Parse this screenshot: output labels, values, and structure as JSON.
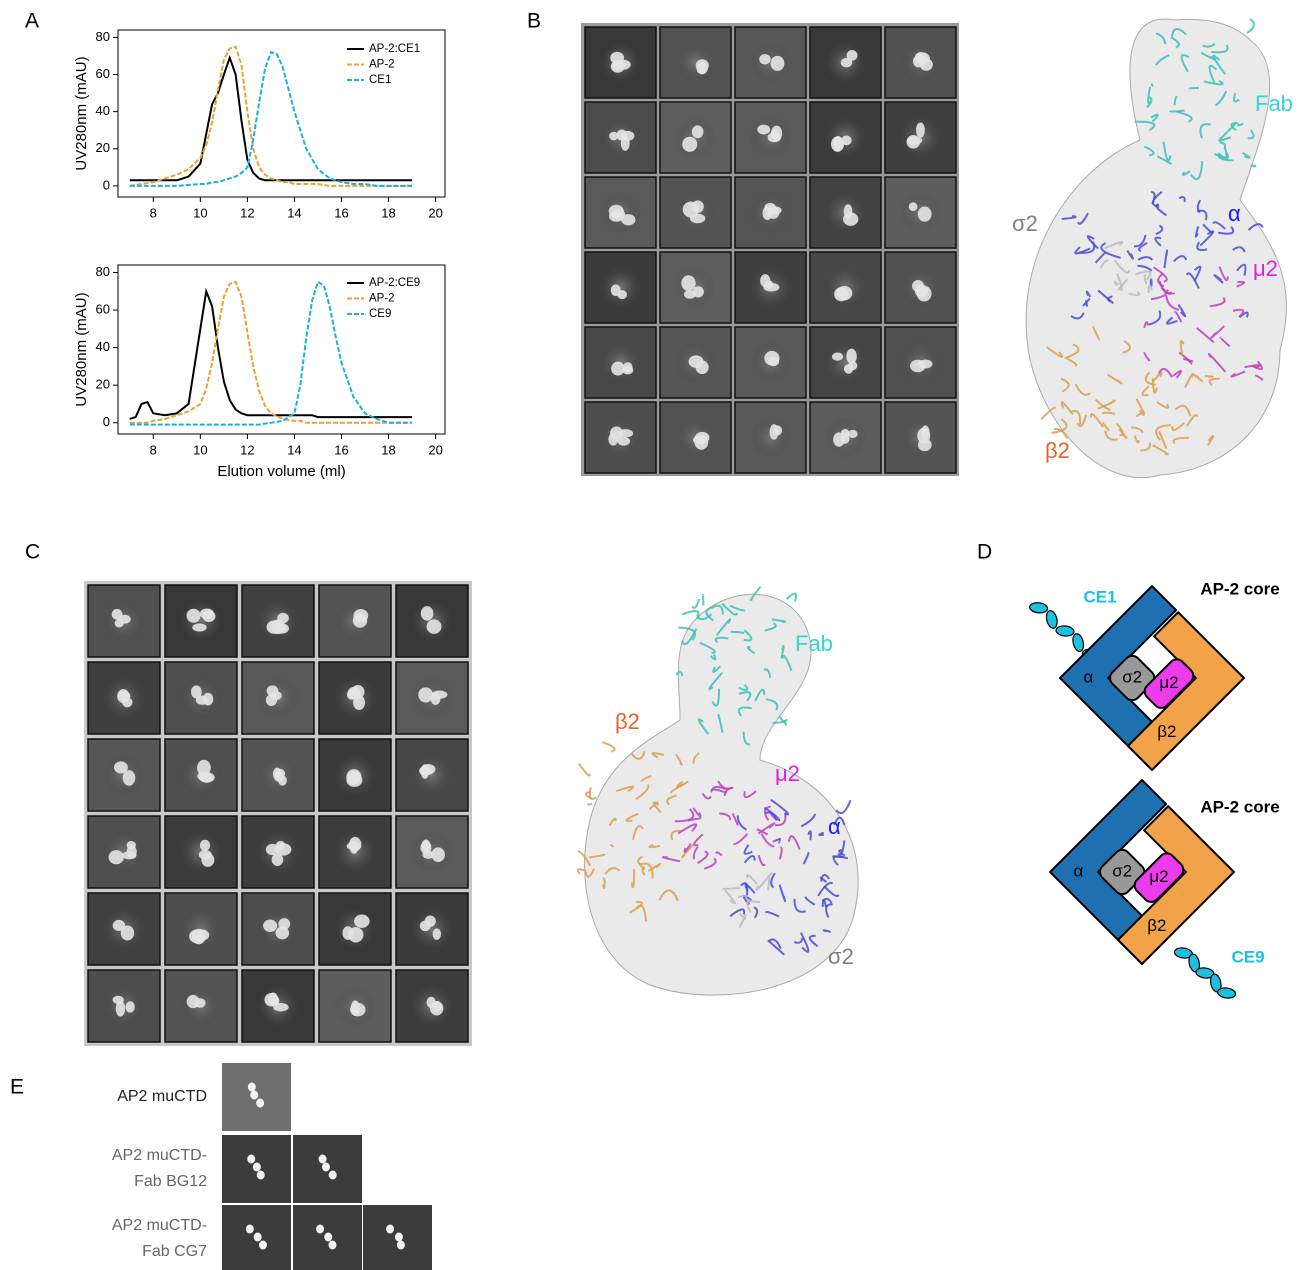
{
  "panel_labels": [
    "A",
    "B",
    "C",
    "D",
    "E"
  ],
  "chart_data": [
    {
      "type": "line",
      "ylabel": "UV280nm (mAU)",
      "x": [
        7,
        7.5,
        8,
        8.5,
        9,
        9.5,
        10,
        10.25,
        10.5,
        10.75,
        11,
        11.25,
        11.5,
        11.75,
        12,
        12.25,
        12.5,
        12.75,
        13,
        13.25,
        13.5,
        13.75,
        14,
        14.5,
        15,
        15.5,
        16,
        16.5,
        17,
        17.5,
        18,
        18.5,
        19
      ],
      "series": [
        {
          "name": "AP-2:CE1",
          "color": "#000000",
          "linestyle": "solid",
          "values": [
            3,
            3,
            3,
            3,
            3,
            5,
            12,
            28,
            44,
            50,
            60,
            69,
            60,
            35,
            14,
            7,
            4,
            3,
            3,
            3,
            3,
            3,
            3,
            3,
            3,
            3,
            3,
            3,
            3,
            3,
            3,
            3,
            3
          ]
        },
        {
          "name": "AP-2",
          "color": "#f0a030",
          "linestyle": "dashed",
          "values": [
            0,
            1,
            2,
            4,
            6,
            9,
            15,
            22,
            34,
            52,
            68,
            74,
            75,
            65,
            40,
            20,
            10,
            6,
            4,
            3,
            2,
            2,
            1,
            1,
            1,
            0,
            0,
            0,
            0,
            0,
            0,
            0,
            0
          ]
        },
        {
          "name": "CE1",
          "color": "#1ab0e0",
          "linestyle": "dashed",
          "values": [
            0,
            0,
            0,
            0,
            0,
            0.5,
            1,
            1,
            2,
            2,
            3,
            4,
            5,
            7,
            10,
            25,
            45,
            63,
            72,
            71,
            64,
            52,
            40,
            20,
            9,
            4,
            2,
            1,
            1,
            0,
            0,
            0,
            0
          ]
        }
      ],
      "xlim": [
        6.5,
        20.4
      ],
      "xticks": [
        8,
        10,
        12,
        14,
        16,
        18,
        20
      ],
      "ylim": [
        -6,
        84
      ],
      "yticks": [
        0,
        20,
        40,
        60,
        80
      ],
      "legend": "upper right"
    },
    {
      "type": "line",
      "ylabel": "UV280nm (mAU)",
      "xlabel": "Elution volume (ml)",
      "x": [
        7,
        7.25,
        7.5,
        7.75,
        8,
        8.5,
        9,
        9.5,
        10,
        10.25,
        10.5,
        10.75,
        11,
        11.25,
        11.5,
        11.75,
        12,
        12.25,
        12.5,
        12.75,
        13,
        13.5,
        14,
        14.25,
        14.5,
        14.75,
        15,
        15.25,
        15.5,
        15.75,
        16,
        16.5,
        17,
        17.5,
        18,
        18.5,
        19
      ],
      "series": [
        {
          "name": "AP-2:CE9",
          "color": "#000000",
          "linestyle": "solid",
          "values": [
            2,
            3,
            10,
            11,
            5,
            4,
            5,
            10,
            50,
            70,
            62,
            40,
            22,
            12,
            7,
            5,
            4,
            4,
            4,
            4,
            4,
            4,
            4,
            4,
            4,
            4,
            3,
            3,
            3,
            3,
            3,
            3,
            3,
            3,
            3,
            3,
            3
          ]
        },
        {
          "name": "AP-2",
          "color": "#f0a030",
          "linestyle": "dashed",
          "values": [
            0,
            0,
            0,
            0,
            1,
            2,
            4,
            6,
            10,
            18,
            32,
            50,
            67,
            74,
            75,
            67,
            48,
            30,
            17,
            9,
            5,
            2,
            1,
            1,
            0,
            0,
            0,
            0,
            0,
            0,
            0,
            0,
            0,
            0,
            0,
            0,
            0
          ]
        },
        {
          "name": "CE9",
          "color": "#1ab0e0",
          "linestyle": "dashed",
          "values": [
            -1,
            -1,
            -1,
            -1,
            -1,
            -1,
            -1,
            -1,
            -1,
            -1,
            -1,
            -1,
            -1,
            -1,
            -1,
            -1,
            -1,
            -1,
            -1,
            -0.5,
            0,
            1,
            5,
            20,
            45,
            65,
            75,
            73,
            62,
            46,
            32,
            14,
            5,
            2,
            0,
            0,
            0
          ]
        }
      ],
      "xlim": [
        6.5,
        20.4
      ],
      "xticks": [
        8,
        10,
        12,
        14,
        16,
        18,
        20
      ],
      "ylim": [
        -6,
        84
      ],
      "yticks": [
        0,
        20,
        40,
        60,
        80
      ],
      "legend": "upper right"
    }
  ],
  "panel_b": {
    "labels": [
      "Fab",
      "σ2",
      "α",
      "μ2",
      "β2"
    ]
  },
  "panel_c": {
    "labels": [
      "Fab",
      "β2",
      "μ2",
      "α",
      "σ2"
    ]
  },
  "panel_d": {
    "diagrams": [
      {
        "title": "AP-2 core",
        "peptide": "CE1",
        "subunits": [
          "α",
          "σ2",
          "μ2",
          "β2"
        ]
      },
      {
        "title": "AP-2 core",
        "peptide": "CE9",
        "subunits": [
          "α",
          "σ2",
          "μ2",
          "β2"
        ]
      }
    ]
  },
  "panel_e": {
    "rows": [
      [
        "AP2 muCTD"
      ],
      [
        "AP2 muCTD-",
        "Fab BG12"
      ],
      [
        "AP2 muCTD-",
        "Fab CG7"
      ]
    ]
  }
}
